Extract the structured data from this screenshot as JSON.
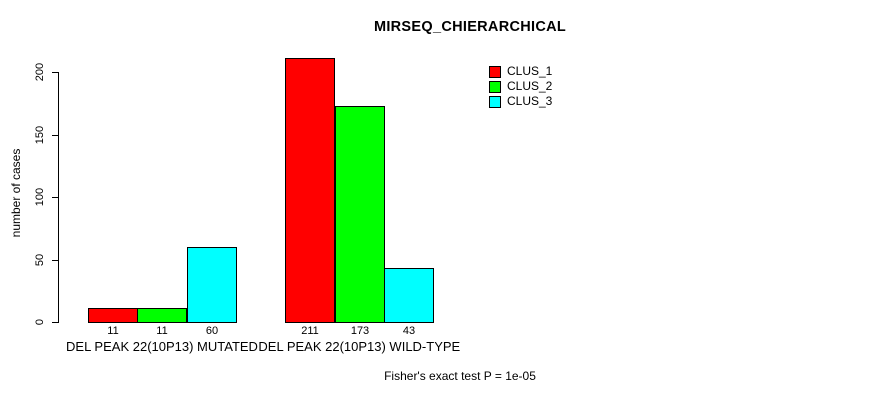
{
  "chart_data": {
    "type": "bar",
    "title": "MIRSEQ_CHIERARCHICAL",
    "xlabel": "",
    "ylabel": "number of cases",
    "categories": [
      "DEL PEAK 22(10P13) MUTATED",
      "DEL PEAK 22(10P13) WILD-TYPE"
    ],
    "series": [
      {
        "name": "CLUS_1",
        "color": "#ff0000",
        "values": [
          11,
          211
        ]
      },
      {
        "name": "CLUS_2",
        "color": "#00ff00",
        "values": [
          11,
          173
        ]
      },
      {
        "name": "CLUS_3",
        "color": "#00ffff",
        "values": [
          60,
          43
        ]
      }
    ],
    "bar_value_labels": [
      [
        11,
        11,
        60
      ],
      [
        211,
        173,
        43
      ]
    ],
    "yticks": [
      0,
      50,
      100,
      150,
      200
    ],
    "ylim": [
      0,
      211
    ],
    "grid": false,
    "legend_position": "top-right",
    "bar_border_color": "#000000",
    "annotation": "Fisher's exact test P = 1e-05"
  }
}
